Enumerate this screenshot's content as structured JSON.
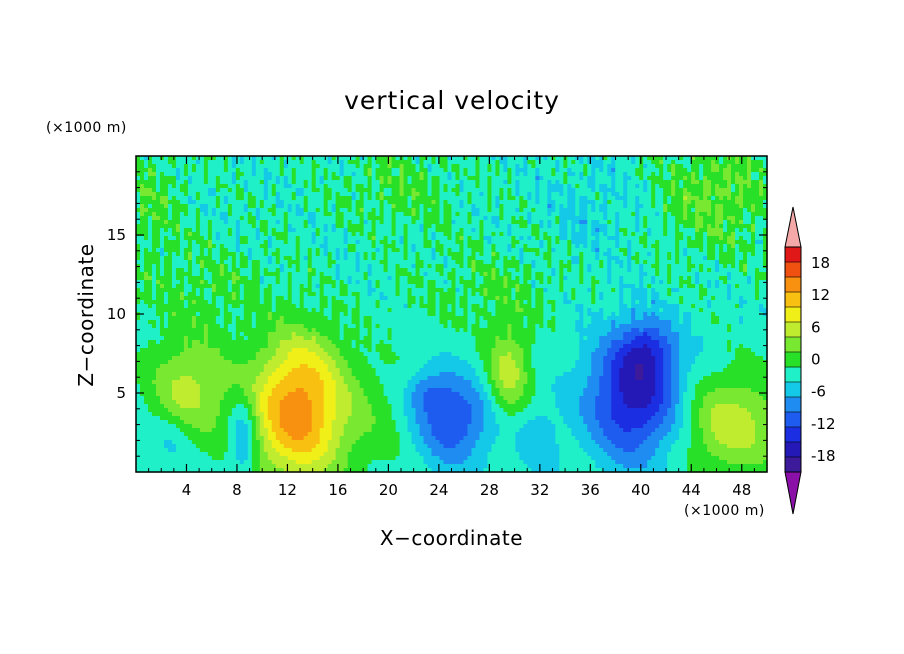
{
  "chart_data": {
    "type": "heatmap",
    "title": "vertical velocity",
    "xlabel": "X−coordinate",
    "ylabel": "Z−coordinate",
    "x_unit": "(×1000 m)",
    "y_unit": "(×1000 m)",
    "xlim": [
      0,
      50
    ],
    "ylim": [
      0,
      20
    ],
    "x_ticks": [
      4,
      8,
      12,
      16,
      20,
      24,
      28,
      32,
      36,
      40,
      44,
      48
    ],
    "y_ticks": [
      5,
      10,
      15
    ],
    "x_tick_labels": [
      "4",
      "8",
      "12",
      "16",
      "20",
      "24",
      "28",
      "32",
      "36",
      "40",
      "44",
      "48"
    ],
    "y_tick_labels": [
      "5",
      "10",
      "15"
    ],
    "colorbar": {
      "levels": [
        -21,
        -18,
        -15,
        -12,
        -9,
        -6,
        -3,
        0,
        3,
        6,
        9,
        12,
        15,
        18,
        21
      ],
      "tick_labels": [
        "-18",
        "-12",
        "-6",
        "0",
        "6",
        "12",
        "18"
      ],
      "tick_values": [
        -18,
        -12,
        -6,
        0,
        6,
        12,
        18
      ],
      "colors": [
        "#3d1a9a",
        "#2418b6",
        "#1c2ee2",
        "#1e5cf0",
        "#1e8cf0",
        "#14c8e8",
        "#20f0c8",
        "#28e028",
        "#78e830",
        "#c0ec30",
        "#f0f018",
        "#f8c010",
        "#f89010",
        "#f05010",
        "#e01818"
      ],
      "under_color": "#8a10a8",
      "over_color": "#f4a8a8",
      "extend": "both"
    },
    "background_value": -1.5,
    "features": [
      {
        "x": 12.8,
        "z": 3.5,
        "sx": 2.8,
        "sz": 2.9,
        "amp": 17.5
      },
      {
        "x": 13.2,
        "z": 7.0,
        "sx": 2.2,
        "sz": 2.0,
        "amp": 4.0
      },
      {
        "x": 4.2,
        "z": 5.3,
        "sx": 2.2,
        "sz": 2.2,
        "amp": 8.5
      },
      {
        "x": 2.8,
        "z": 2.2,
        "sx": 1.2,
        "sz": 1.2,
        "amp": -3.0
      },
      {
        "x": 8.5,
        "z": 2.2,
        "sx": 0.8,
        "sz": 1.8,
        "amp": -8.5
      },
      {
        "x": 25.0,
        "z": 3.3,
        "sx": 2.2,
        "sz": 2.0,
        "amp": -10.5
      },
      {
        "x": 23.0,
        "z": 5.0,
        "sx": 1.2,
        "sz": 0.9,
        "amp": -5.0
      },
      {
        "x": 29.5,
        "z": 6.3,
        "sx": 1.2,
        "sz": 2.0,
        "amp": 9.0
      },
      {
        "x": 31.8,
        "z": 2.2,
        "sx": 1.2,
        "sz": 1.5,
        "amp": -3.5
      },
      {
        "x": 39.5,
        "z": 4.8,
        "sx": 2.6,
        "sz": 2.8,
        "amp": -15.0
      },
      {
        "x": 40.5,
        "z": 7.8,
        "sx": 1.4,
        "sz": 1.3,
        "amp": -7.0
      },
      {
        "x": 47.2,
        "z": 3.0,
        "sx": 2.8,
        "sz": 2.2,
        "amp": 9.5
      },
      {
        "x": 20.0,
        "z": 3.5,
        "sx": 2.5,
        "sz": 2.5,
        "amp": 2.5
      },
      {
        "x": 6.0,
        "z": 11.5,
        "sx": 4.0,
        "sz": 2.0,
        "amp": 2.5
      },
      {
        "x": 28.0,
        "z": 11.5,
        "sx": 4.0,
        "sz": 2.0,
        "amp": 2.5
      },
      {
        "x": 46.0,
        "z": 17.5,
        "sx": 3.0,
        "sz": 2.5,
        "amp": 5.0
      },
      {
        "x": 1.0,
        "z": 17.0,
        "sx": 2.0,
        "sz": 3.0,
        "amp": 3.0
      },
      {
        "x": 21.0,
        "z": 18.0,
        "sx": 3.0,
        "sz": 2.0,
        "amp": 3.0
      },
      {
        "x": 36.0,
        "z": 16.5,
        "sx": 2.5,
        "sz": 2.0,
        "amp": -2.0
      }
    ]
  }
}
